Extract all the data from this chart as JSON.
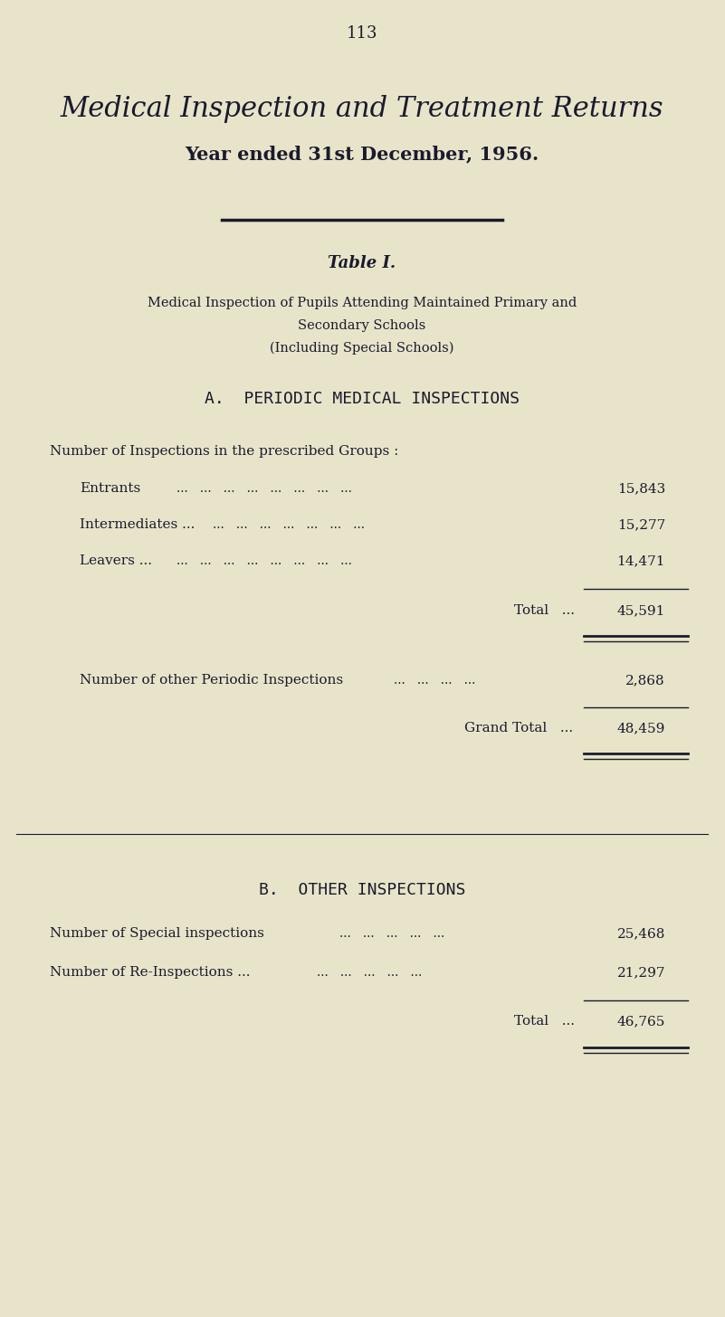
{
  "bg_color": "#e8e4c9",
  "text_color": "#1a1a2e",
  "page_number": "113",
  "main_title_line1": "Medical Inspection and Treatment Returns",
  "main_title_line2": "Year ended 31st December, 1956.",
  "table_title": "Table I.",
  "subtitle_line1": "Medical Inspection of Pupils Attending Maintained Primary and",
  "subtitle_line2": "Secondary Schools",
  "subtitle_line3": "(Including Special Schools)",
  "section_a_heading": "A.  PERIODIC MEDICAL INSPECTIONS",
  "groups_label": "Number of Inspections in the prescribed Groups :",
  "entrants_label": "Entrants",
  "entrants_value": "15,843",
  "intermediates_label": "Intermediates ...",
  "intermediates_value": "15,277",
  "leavers_label": "Leavers ...",
  "leavers_value": "14,471",
  "total_label": "Total   ...",
  "total_value": "45,591",
  "other_label": "Number of other Periodic Inspections",
  "other_value": "2,868",
  "grand_total_label": "Grand Total   ...",
  "grand_total_value": "48,459",
  "section_b_heading": "B.  OTHER INSPECTIONS",
  "special_label": "Number of Special inspections",
  "special_value": "25,468",
  "reinspect_label": "Number of Re-Inspections ...",
  "reinspect_value": "21,297",
  "b_total_label": "Total   ...",
  "b_total_value": "46,765"
}
